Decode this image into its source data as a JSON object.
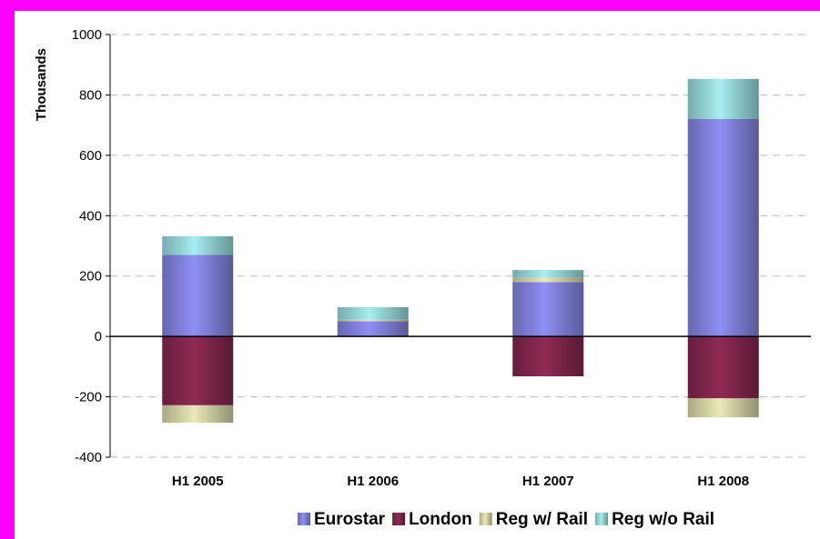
{
  "chart_data": {
    "type": "bar",
    "stacked": true,
    "title": "",
    "xlabel": "",
    "ylabel": "Thousands",
    "ylim": [
      -400,
      1000
    ],
    "yticks": [
      1000,
      800,
      600,
      400,
      200,
      0,
      -200,
      -400
    ],
    "categories": [
      "H1 2005",
      "H1 2006",
      "H1 2007",
      "H1 2008"
    ],
    "series": [
      {
        "name": "Eurostar",
        "color": "#8f8ff5",
        "values": [
          270,
          50,
          180,
          720
        ]
      },
      {
        "name": "London",
        "color": "#8f2a55",
        "values": [
          -228,
          0,
          -132,
          -205
        ]
      },
      {
        "name": "Reg w/ Rail",
        "color": "#ebe9b8",
        "values": [
          -58,
          5,
          15,
          -63
        ]
      },
      {
        "name": "Reg w/o Rail",
        "color": "#a6eef0",
        "values": [
          62,
          42,
          25,
          133
        ]
      }
    ],
    "grid": "horizontal-dashed",
    "legend_position": "bottom"
  }
}
